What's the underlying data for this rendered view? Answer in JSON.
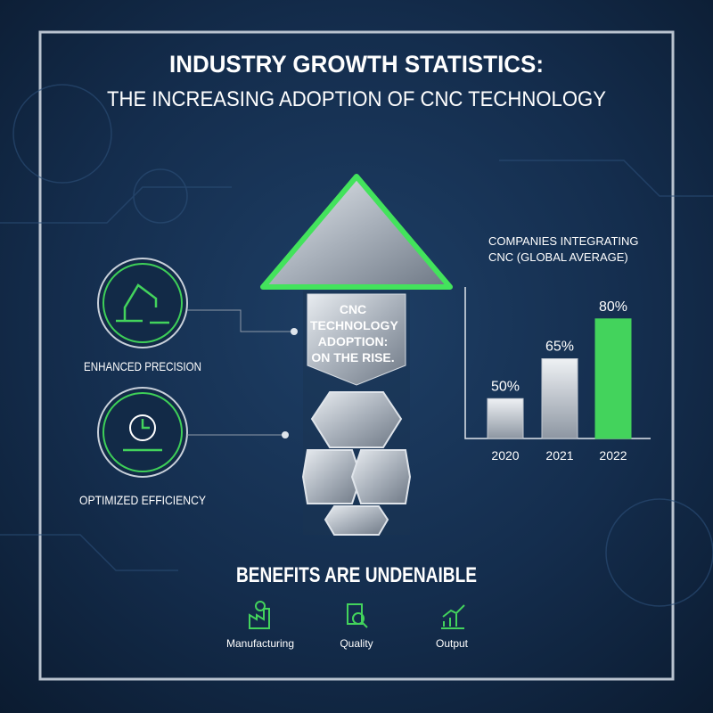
{
  "header": {
    "title": "INDUSTRY GROWTH STATISTICS:",
    "subtitle": "THE INCREASING ADOPTION OF CNC TECHNOLOGY"
  },
  "arrow_text": "CNC TECHNOLOGY ADOPTION: ON THE RISE.",
  "features": [
    {
      "label": "ENHANCED PRECISION"
    },
    {
      "label": "OPTIMIZED EFFICIENCY"
    }
  ],
  "chart_data": {
    "type": "bar",
    "title": "COMPANIES INTEGRATING CNC (GLOBAL AVERAGE)",
    "categories": [
      "2020",
      "2021",
      "2022"
    ],
    "values": [
      50,
      65,
      80
    ],
    "value_labels": [
      "50%",
      "65%",
      "80%"
    ],
    "colors": [
      "#c3c9d1",
      "#c3c9d1",
      "#43d35c"
    ],
    "ylim": [
      35,
      92
    ]
  },
  "footer": {
    "title": "BENEFITS ARE UNDENAIBLE",
    "items": [
      "Manufacturing",
      "Quality",
      "Output"
    ]
  }
}
